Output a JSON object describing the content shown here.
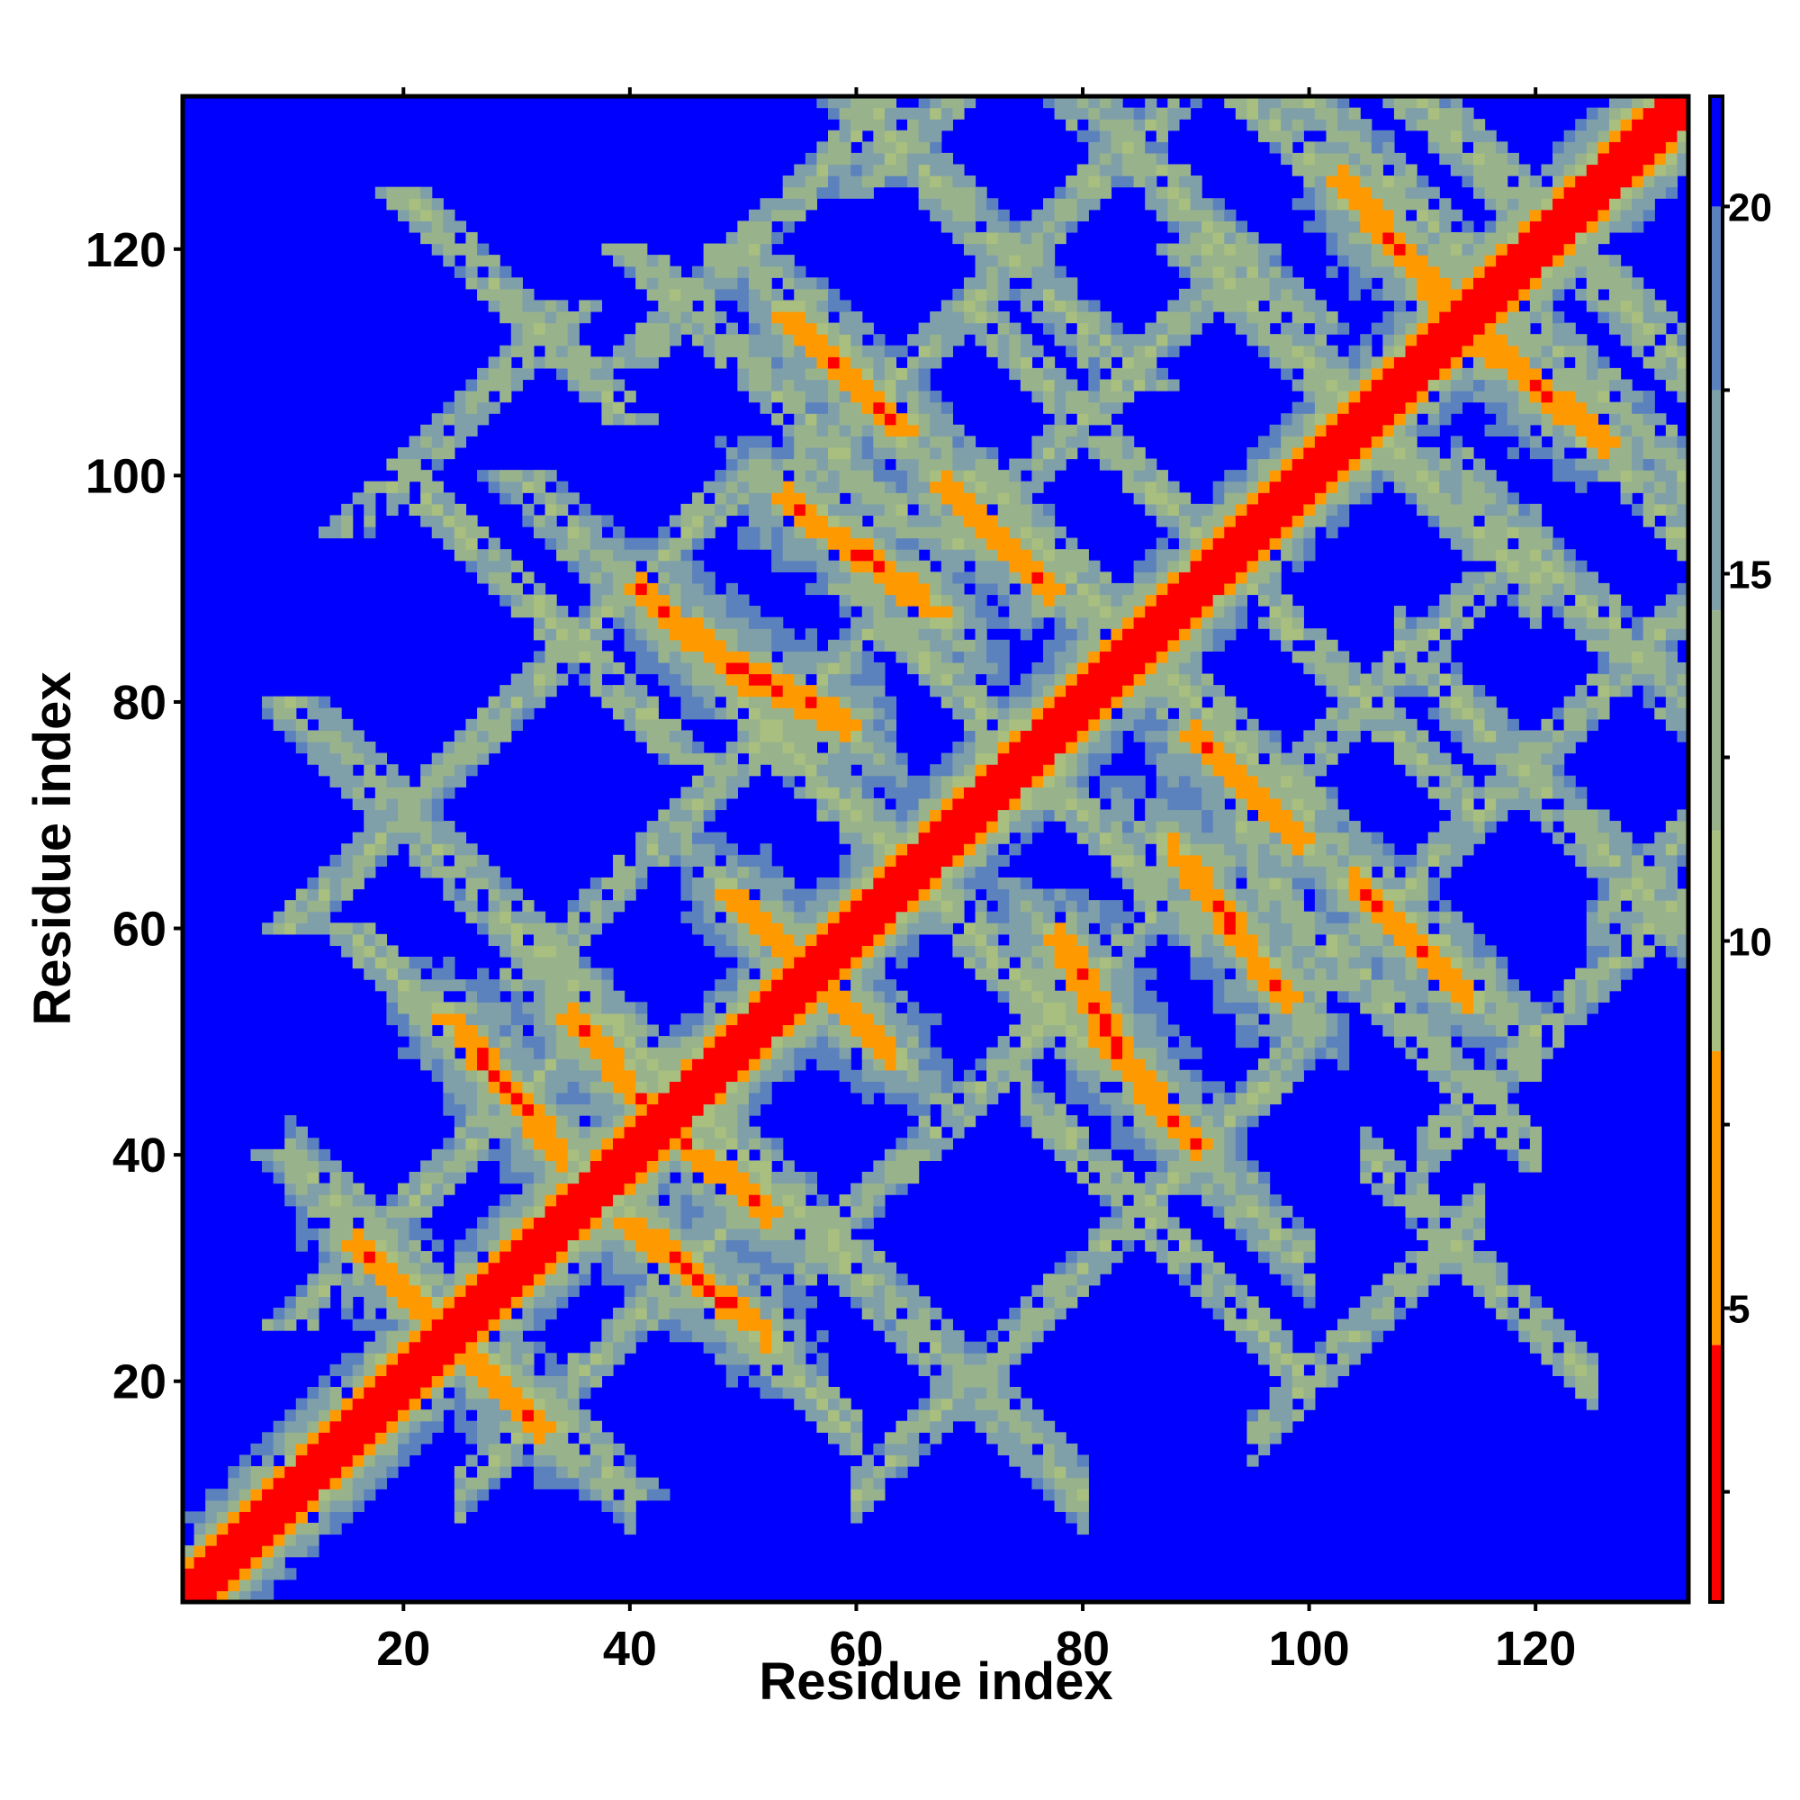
{
  "chart_data": {
    "type": "heatmap",
    "title": "",
    "xlabel": "Residue index",
    "ylabel": "Residue index",
    "n_residues": 133,
    "xlim": [
      1,
      133
    ],
    "ylim": [
      1,
      133
    ],
    "x_ticks": [
      20,
      40,
      60,
      80,
      100,
      120
    ],
    "y_ticks": [
      20,
      40,
      60,
      80,
      100,
      120
    ],
    "colorbar": {
      "ticks": [
        5,
        10,
        15,
        20
      ],
      "range": [
        1,
        21.5
      ],
      "orientation": "vertical",
      "placement": "right"
    },
    "colormap": [
      {
        "max": 4.5,
        "color": "#ff0000"
      },
      {
        "max": 8.5,
        "color": "#ff9900"
      },
      {
        "max": 11.5,
        "color": "#a9bf7f"
      },
      {
        "max": 14.5,
        "color": "#98b38c"
      },
      {
        "max": 17.5,
        "color": "#7fa0a8"
      },
      {
        "max": 20.0,
        "color": "#5b82bd"
      },
      {
        "max": 999,
        "color": "#0000ff"
      }
    ],
    "background_color": "#0000ff",
    "description_values": {
      "diagonal_distance": 1.5,
      "max_distance": 21.5
    },
    "strands": [
      [
        3,
        11
      ],
      [
        14,
        23
      ],
      [
        25,
        33
      ],
      [
        41,
        51
      ],
      [
        54,
        64
      ],
      [
        68,
        78
      ],
      [
        88,
        98
      ],
      [
        103,
        114
      ],
      [
        117,
        128
      ],
      [
        129,
        133
      ]
    ],
    "pairings": [
      {
        "a": [
          16,
          22
        ],
        "b": [
          26,
          32
        ],
        "dir": "anti"
      },
      {
        "a": [
          24,
          34
        ],
        "b": [
          40,
          52
        ],
        "dir": "anti"
      },
      {
        "a": [
          35,
          43
        ],
        "b": [
          43,
          52
        ],
        "dir": "anti"
      },
      {
        "a": [
          41,
          50
        ],
        "b": [
          82,
          90
        ],
        "dir": "anti"
      },
      {
        "a": [
          49,
          56
        ],
        "b": [
          56,
          63
        ],
        "dir": "anti"
      },
      {
        "a": [
          54,
          64
        ],
        "b": [
          104,
          114
        ],
        "dir": "anti"
      },
      {
        "a": [
          68,
          77
        ],
        "b": [
          90,
          99
        ],
        "dir": "anti"
      },
      {
        "a": [
          78,
          83
        ],
        "b": [
          49,
          59
        ],
        "dir": "anti"
      },
      {
        "a": [
          88,
          98
        ],
        "b": [
          54,
          67
        ],
        "dir": "anti"
      },
      {
        "a": [
          103,
          113
        ],
        "b": [
          114,
          126
        ],
        "dir": "anti"
      }
    ]
  }
}
